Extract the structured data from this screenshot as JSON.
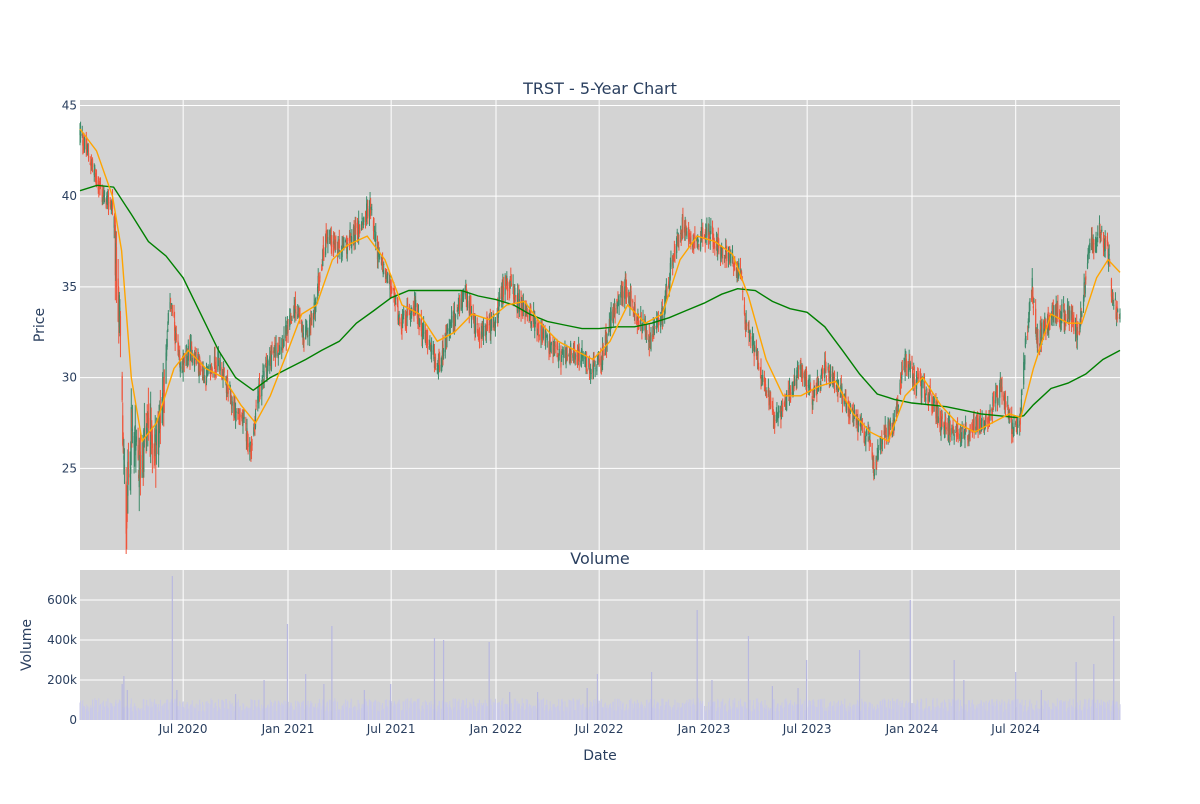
{
  "chart_data": [
    {
      "type": "candlestick",
      "title": "TRST - 5-Year Chart",
      "xlabel": "",
      "ylabel": "Price",
      "yticks": [
        25,
        30,
        35,
        40,
        45
      ],
      "ylim": [
        20.5,
        45.3
      ],
      "xlim": [
        "2020-01-02",
        "2024-12-31"
      ],
      "background": "#d3d3d3",
      "grid": true,
      "colors": {
        "up": "#3d8b6a",
        "down": "#ef553b",
        "ma_short": "#ffa500",
        "ma_long": "#008000"
      },
      "anchors": [
        [
          "2020-01-02",
          43.5
        ],
        [
          "2020-01-20",
          42.0
        ],
        [
          "2020-02-10",
          40.0
        ],
        [
          "2020-02-28",
          39.5
        ],
        [
          "2020-03-05",
          36.0
        ],
        [
          "2020-03-12",
          33.0
        ],
        [
          "2020-03-18",
          25.5
        ],
        [
          "2020-03-23",
          22.5
        ],
        [
          "2020-04-01",
          27.0
        ],
        [
          "2020-04-15",
          25.0
        ],
        [
          "2020-05-01",
          27.5
        ],
        [
          "2020-05-14",
          26.0
        ],
        [
          "2020-06-01",
          31.0
        ],
        [
          "2020-06-08",
          34.5
        ],
        [
          "2020-06-25",
          30.5
        ],
        [
          "2020-07-15",
          31.5
        ],
        [
          "2020-08-10",
          30.0
        ],
        [
          "2020-09-01",
          31.0
        ],
        [
          "2020-09-25",
          28.5
        ],
        [
          "2020-10-15",
          27.5
        ],
        [
          "2020-10-28",
          26.0
        ],
        [
          "2020-11-09",
          29.0
        ],
        [
          "2020-11-30",
          31.0
        ],
        [
          "2020-12-31",
          32.5
        ],
        [
          "2021-01-15",
          34.0
        ],
        [
          "2021-01-29",
          32.0
        ],
        [
          "2021-02-15",
          33.5
        ],
        [
          "2021-03-10",
          38.0
        ],
        [
          "2021-03-31",
          37.0
        ],
        [
          "2021-04-20",
          37.5
        ],
        [
          "2021-05-10",
          38.5
        ],
        [
          "2021-05-25",
          39.5
        ],
        [
          "2021-06-10",
          36.5
        ],
        [
          "2021-06-30",
          35.0
        ],
        [
          "2021-07-20",
          33.0
        ],
        [
          "2021-08-10",
          34.0
        ],
        [
          "2021-09-01",
          32.0
        ],
        [
          "2021-09-20",
          30.5
        ],
        [
          "2021-10-15",
          33.0
        ],
        [
          "2021-11-08",
          34.5
        ],
        [
          "2021-11-30",
          32.5
        ],
        [
          "2021-12-31",
          33.0
        ],
        [
          "2022-01-18",
          35.5
        ],
        [
          "2022-02-10",
          34.0
        ],
        [
          "2022-03-01",
          33.5
        ],
        [
          "2022-03-31",
          32.0
        ],
        [
          "2022-04-25",
          31.0
        ],
        [
          "2022-05-20",
          31.5
        ],
        [
          "2022-06-16",
          30.5
        ],
        [
          "2022-07-05",
          31.0
        ],
        [
          "2022-07-29",
          34.0
        ],
        [
          "2022-08-16",
          35.0
        ],
        [
          "2022-09-01",
          33.5
        ],
        [
          "2022-09-30",
          32.0
        ],
        [
          "2022-10-20",
          33.5
        ],
        [
          "2022-11-10",
          37.0
        ],
        [
          "2022-11-25",
          38.5
        ],
        [
          "2022-12-15",
          37.5
        ],
        [
          "2023-01-10",
          38.0
        ],
        [
          "2023-02-01",
          37.0
        ],
        [
          "2023-02-20",
          36.5
        ],
        [
          "2023-03-08",
          35.5
        ],
        [
          "2023-03-13",
          33.0
        ],
        [
          "2023-04-01",
          31.5
        ],
        [
          "2023-04-25",
          29.0
        ],
        [
          "2023-05-05",
          27.5
        ],
        [
          "2023-05-31",
          29.0
        ],
        [
          "2023-06-20",
          30.5
        ],
        [
          "2023-07-10",
          29.0
        ],
        [
          "2023-08-01",
          30.5
        ],
        [
          "2023-08-31",
          29.0
        ],
        [
          "2023-09-25",
          27.5
        ],
        [
          "2023-10-20",
          26.5
        ],
        [
          "2023-10-27",
          24.5
        ],
        [
          "2023-11-10",
          27.0
        ],
        [
          "2023-11-30",
          27.5
        ],
        [
          "2023-12-20",
          31.0
        ],
        [
          "2024-01-05",
          30.0
        ],
        [
          "2024-02-01",
          29.0
        ],
        [
          "2024-02-20",
          27.5
        ],
        [
          "2024-03-15",
          27.0
        ],
        [
          "2024-04-10",
          27.0
        ],
        [
          "2024-04-22",
          27.5
        ],
        [
          "2024-05-15",
          28.0
        ],
        [
          "2024-06-05",
          29.5
        ],
        [
          "2024-06-25",
          27.0
        ],
        [
          "2024-07-10",
          28.0
        ],
        [
          "2024-07-17",
          31.5
        ],
        [
          "2024-07-30",
          35.0
        ],
        [
          "2024-08-07",
          32.0
        ],
        [
          "2024-09-01",
          33.5
        ],
        [
          "2024-10-01",
          33.5
        ],
        [
          "2024-10-20",
          32.5
        ],
        [
          "2024-11-06",
          37.0
        ],
        [
          "2024-11-25",
          38.0
        ],
        [
          "2024-12-10",
          37.0
        ],
        [
          "2024-12-18",
          34.0
        ],
        [
          "2024-12-31",
          33.5
        ]
      ],
      "ma_short": [
        [
          "2020-01-02",
          43.7
        ],
        [
          "2020-01-31",
          42.5
        ],
        [
          "2020-02-28",
          40.0
        ],
        [
          "2020-03-15",
          37.0
        ],
        [
          "2020-04-01",
          30.0
        ],
        [
          "2020-04-20",
          26.5
        ],
        [
          "2020-05-15",
          27.5
        ],
        [
          "2020-06-15",
          30.5
        ],
        [
          "2020-07-10",
          31.5
        ],
        [
          "2020-08-10",
          30.5
        ],
        [
          "2020-09-10",
          30.0
        ],
        [
          "2020-10-10",
          28.5
        ],
        [
          "2020-11-05",
          27.5
        ],
        [
          "2020-12-01",
          29.0
        ],
        [
          "2021-01-01",
          31.5
        ],
        [
          "2021-01-25",
          33.5
        ],
        [
          "2021-02-20",
          34.0
        ],
        [
          "2021-03-20",
          36.5
        ],
        [
          "2021-04-15",
          37.3
        ],
        [
          "2021-05-20",
          37.8
        ],
        [
          "2021-06-20",
          36.5
        ],
        [
          "2021-07-20",
          34.0
        ],
        [
          "2021-08-20",
          33.5
        ],
        [
          "2021-09-20",
          32.0
        ],
        [
          "2021-10-20",
          32.5
        ],
        [
          "2021-11-20",
          33.5
        ],
        [
          "2021-12-20",
          33.2
        ],
        [
          "2022-01-20",
          34.0
        ],
        [
          "2022-02-20",
          34.2
        ],
        [
          "2022-03-20",
          33.0
        ],
        [
          "2022-04-20",
          32.0
        ],
        [
          "2022-05-20",
          31.5
        ],
        [
          "2022-06-20",
          31.0
        ],
        [
          "2022-07-20",
          32.0
        ],
        [
          "2022-08-20",
          34.0
        ],
        [
          "2022-09-20",
          33.0
        ],
        [
          "2022-10-20",
          33.5
        ],
        [
          "2022-11-20",
          36.5
        ],
        [
          "2022-12-20",
          37.8
        ],
        [
          "2023-01-20",
          37.5
        ],
        [
          "2023-02-20",
          36.8
        ],
        [
          "2023-03-20",
          34.5
        ],
        [
          "2023-04-20",
          31.0
        ],
        [
          "2023-05-20",
          29.0
        ],
        [
          "2023-06-20",
          29.0
        ],
        [
          "2023-07-20",
          29.5
        ],
        [
          "2023-08-20",
          29.8
        ],
        [
          "2023-09-20",
          28.0
        ],
        [
          "2023-10-20",
          27.0
        ],
        [
          "2023-11-20",
          26.5
        ],
        [
          "2023-12-20",
          29.0
        ],
        [
          "2024-01-20",
          30.0
        ],
        [
          "2024-02-20",
          28.5
        ],
        [
          "2024-03-20",
          27.5
        ],
        [
          "2024-04-20",
          27.0
        ],
        [
          "2024-05-20",
          27.5
        ],
        [
          "2024-06-20",
          28.0
        ],
        [
          "2024-07-10",
          27.8
        ],
        [
          "2024-08-01",
          30.5
        ],
        [
          "2024-09-01",
          33.5
        ],
        [
          "2024-10-01",
          33.0
        ],
        [
          "2024-10-25",
          33.0
        ],
        [
          "2024-11-20",
          35.5
        ],
        [
          "2024-12-10",
          36.5
        ],
        [
          "2024-12-31",
          35.8
        ]
      ],
      "ma_long": [
        [
          "2020-01-02",
          40.3
        ],
        [
          "2020-02-01",
          40.6
        ],
        [
          "2020-03-01",
          40.5
        ],
        [
          "2020-04-01",
          39.0
        ],
        [
          "2020-05-01",
          37.5
        ],
        [
          "2020-06-01",
          36.7
        ],
        [
          "2020-07-01",
          35.5
        ],
        [
          "2020-08-01",
          33.5
        ],
        [
          "2020-09-01",
          31.5
        ],
        [
          "2020-10-01",
          30.0
        ],
        [
          "2020-11-01",
          29.3
        ],
        [
          "2020-12-01",
          30.0
        ],
        [
          "2021-01-01",
          30.5
        ],
        [
          "2021-02-01",
          31.0
        ],
        [
          "2021-03-01",
          31.5
        ],
        [
          "2021-04-01",
          32.0
        ],
        [
          "2021-05-01",
          33.0
        ],
        [
          "2021-06-01",
          33.7
        ],
        [
          "2021-07-01",
          34.4
        ],
        [
          "2021-08-01",
          34.8
        ],
        [
          "2021-09-01",
          34.8
        ],
        [
          "2021-10-01",
          34.8
        ],
        [
          "2021-11-01",
          34.8
        ],
        [
          "2021-12-01",
          34.5
        ],
        [
          "2022-01-01",
          34.3
        ],
        [
          "2022-02-01",
          34.0
        ],
        [
          "2022-03-01",
          33.5
        ],
        [
          "2022-04-01",
          33.1
        ],
        [
          "2022-05-01",
          32.9
        ],
        [
          "2022-06-01",
          32.7
        ],
        [
          "2022-07-01",
          32.7
        ],
        [
          "2022-08-01",
          32.8
        ],
        [
          "2022-09-01",
          32.8
        ],
        [
          "2022-10-01",
          33.0
        ],
        [
          "2022-11-01",
          33.3
        ],
        [
          "2022-12-01",
          33.7
        ],
        [
          "2023-01-01",
          34.1
        ],
        [
          "2023-02-01",
          34.6
        ],
        [
          "2023-03-01",
          34.9
        ],
        [
          "2023-04-01",
          34.8
        ],
        [
          "2023-05-01",
          34.2
        ],
        [
          "2023-06-01",
          33.8
        ],
        [
          "2023-07-01",
          33.6
        ],
        [
          "2023-08-01",
          32.8
        ],
        [
          "2023-09-01",
          31.5
        ],
        [
          "2023-10-01",
          30.2
        ],
        [
          "2023-11-01",
          29.1
        ],
        [
          "2023-12-01",
          28.8
        ],
        [
          "2024-01-01",
          28.6
        ],
        [
          "2024-02-01",
          28.5
        ],
        [
          "2024-03-01",
          28.4
        ],
        [
          "2024-04-01",
          28.2
        ],
        [
          "2024-05-01",
          28.0
        ],
        [
          "2024-06-01",
          27.9
        ],
        [
          "2024-07-01",
          27.8
        ],
        [
          "2024-07-15",
          27.9
        ],
        [
          "2024-08-01",
          28.5
        ],
        [
          "2024-09-01",
          29.4
        ],
        [
          "2024-10-01",
          29.7
        ],
        [
          "2024-11-01",
          30.2
        ],
        [
          "2024-12-01",
          31.0
        ],
        [
          "2024-12-31",
          31.5
        ]
      ]
    },
    {
      "type": "bar",
      "title": "Volume",
      "xlabel": "Date",
      "ylabel": "Volume",
      "ylim": [
        0,
        750000
      ],
      "yticks": [
        0,
        200000,
        400000,
        600000
      ],
      "ytick_labels": [
        "0",
        "200k",
        "400k",
        "600k"
      ],
      "xticks": [
        "2020-07-01",
        "2021-01-01",
        "2021-07-01",
        "2022-01-01",
        "2022-07-01",
        "2023-01-01",
        "2023-07-01",
        "2024-01-01",
        "2024-07-01"
      ],
      "xtick_labels": [
        "Jul 2020",
        "Jan 2021",
        "Jul 2021",
        "Jan 2022",
        "Jul 2022",
        "Jan 2023",
        "Jul 2023",
        "Jan 2024",
        "Jul 2024"
      ],
      "bar_color": "#c9c9e8",
      "background": "#d3d3d3",
      "grid": true,
      "typical_volume": 75000,
      "spikes": [
        [
          "2020-03-16",
          180000
        ],
        [
          "2020-03-19",
          220000
        ],
        [
          "2020-03-25",
          150000
        ],
        [
          "2020-06-12",
          720000
        ],
        [
          "2020-06-20",
          150000
        ],
        [
          "2020-10-01",
          130000
        ],
        [
          "2020-11-20",
          200000
        ],
        [
          "2020-12-31",
          480000
        ],
        [
          "2021-02-01",
          230000
        ],
        [
          "2021-03-05",
          180000
        ],
        [
          "2021-03-19",
          470000
        ],
        [
          "2021-05-15",
          150000
        ],
        [
          "2021-06-30",
          180000
        ],
        [
          "2021-09-15",
          410000
        ],
        [
          "2021-10-01",
          400000
        ],
        [
          "2021-12-20",
          390000
        ],
        [
          "2022-01-25",
          140000
        ],
        [
          "2022-03-15",
          140000
        ],
        [
          "2022-06-10",
          160000
        ],
        [
          "2022-06-28",
          230000
        ],
        [
          "2022-10-01",
          240000
        ],
        [
          "2022-12-20",
          550000
        ],
        [
          "2023-01-15",
          200000
        ],
        [
          "2023-03-20",
          420000
        ],
        [
          "2023-05-01",
          170000
        ],
        [
          "2023-06-15",
          160000
        ],
        [
          "2023-06-30",
          300000
        ],
        [
          "2023-10-01",
          350000
        ],
        [
          "2023-12-29",
          600000
        ],
        [
          "2024-03-15",
          300000
        ],
        [
          "2024-04-01",
          200000
        ],
        [
          "2024-07-01",
          240000
        ],
        [
          "2024-08-15",
          150000
        ],
        [
          "2024-10-15",
          290000
        ],
        [
          "2024-11-15",
          280000
        ],
        [
          "2024-12-20",
          520000
        ]
      ]
    }
  ]
}
